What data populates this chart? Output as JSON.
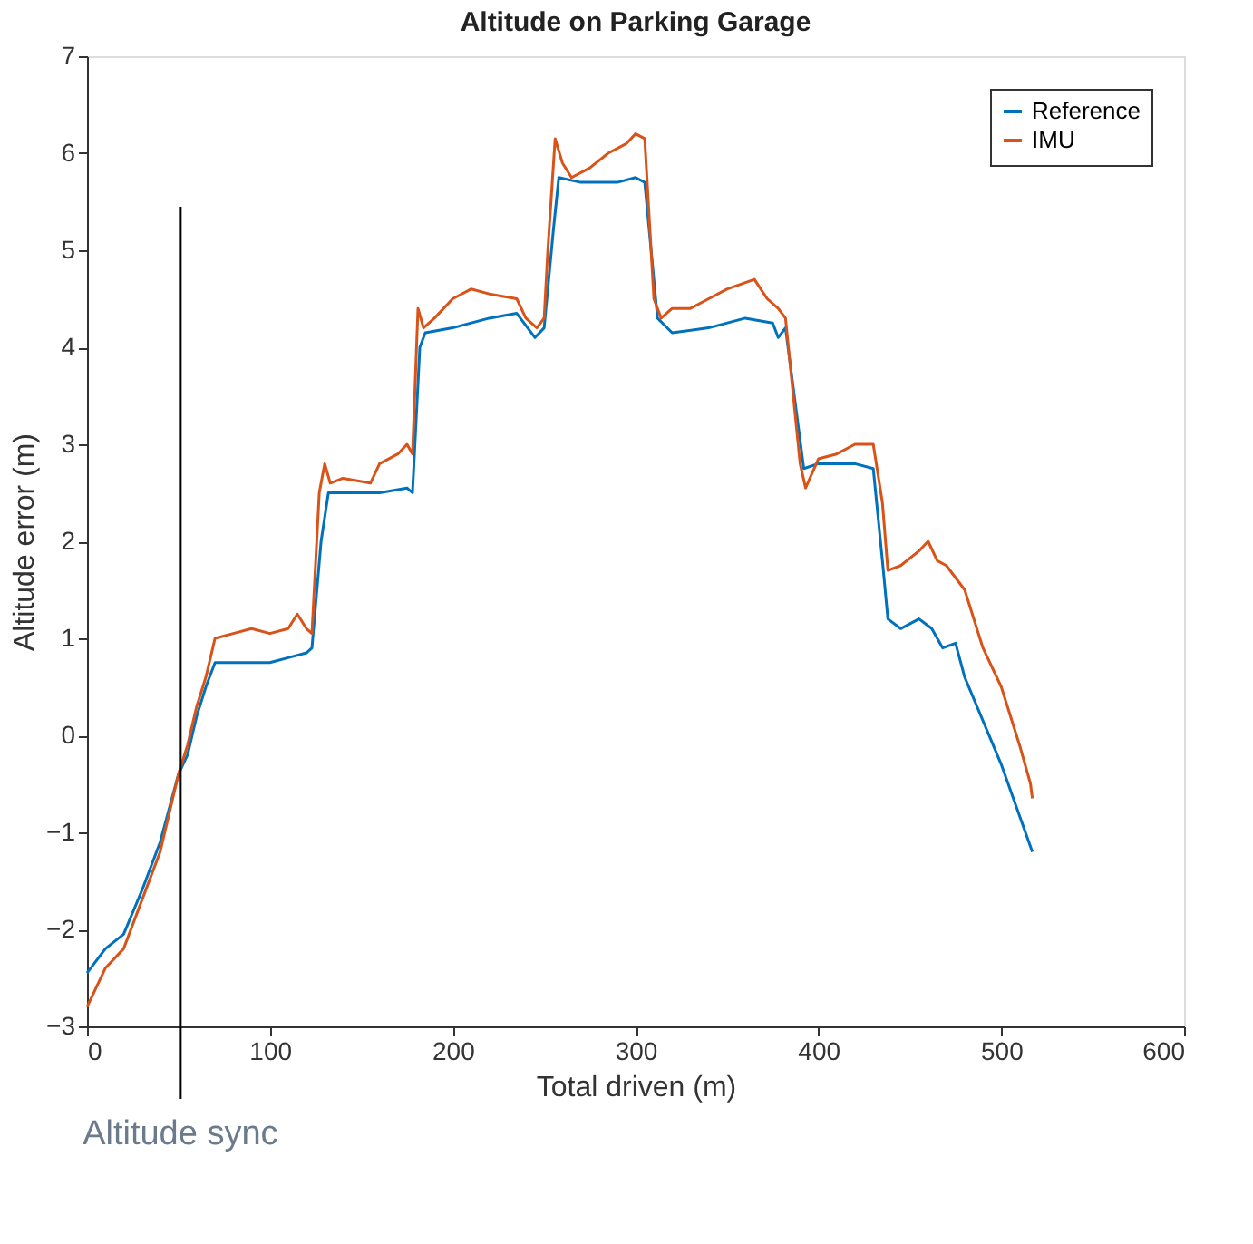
{
  "chart_data": {
    "type": "line",
    "title": "Altitude on Parking Garage",
    "xlabel": "Total driven (m)",
    "ylabel": "Altitude error (m)",
    "xlim": [
      0,
      600
    ],
    "xticks": [
      0,
      100,
      200,
      300,
      400,
      500,
      600
    ],
    "ylim": [
      -3,
      7
    ],
    "yticks": [
      -3,
      -2,
      -1,
      0,
      1,
      2,
      3,
      4,
      5,
      6,
      7
    ],
    "grid": false,
    "legend": "top right",
    "series": [
      {
        "name": "Reference",
        "color": "#0072bd",
        "x": [
          0,
          10,
          20,
          30,
          40,
          50,
          55,
          60,
          65,
          70,
          80,
          90,
          100,
          110,
          120,
          123,
          128,
          132,
          140,
          160,
          175,
          178,
          182,
          185,
          200,
          220,
          235,
          245,
          250,
          255,
          258,
          270,
          290,
          300,
          305,
          312,
          320,
          340,
          360,
          375,
          378,
          382,
          392,
          400,
          420,
          430,
          435,
          438,
          445,
          455,
          462,
          468,
          475,
          480,
          500,
          517
        ],
        "values": [
          -2.45,
          -2.2,
          -2.05,
          -1.6,
          -1.1,
          -0.4,
          -0.2,
          0.2,
          0.5,
          0.75,
          0.75,
          0.75,
          0.75,
          0.8,
          0.85,
          0.9,
          2.0,
          2.5,
          2.5,
          2.5,
          2.55,
          2.5,
          4.0,
          4.15,
          4.2,
          4.3,
          4.35,
          4.1,
          4.2,
          5.2,
          5.75,
          5.7,
          5.7,
          5.75,
          5.7,
          4.3,
          4.15,
          4.2,
          4.3,
          4.25,
          4.1,
          4.2,
          2.75,
          2.8,
          2.8,
          2.75,
          1.8,
          1.2,
          1.1,
          1.2,
          1.1,
          0.9,
          0.95,
          0.6,
          -0.3,
          -1.2
        ]
      },
      {
        "name": "IMU",
        "color": "#d95319",
        "x": [
          0,
          10,
          20,
          30,
          40,
          50,
          55,
          60,
          65,
          70,
          80,
          90,
          100,
          110,
          115,
          120,
          123,
          127,
          130,
          133,
          140,
          155,
          160,
          170,
          175,
          178,
          181,
          184,
          190,
          200,
          210,
          220,
          235,
          240,
          246,
          250,
          252,
          256,
          260,
          265,
          275,
          285,
          295,
          300,
          305,
          310,
          314,
          320,
          330,
          340,
          350,
          365,
          372,
          378,
          382,
          390,
          393,
          400,
          410,
          420,
          430,
          435,
          438,
          445,
          455,
          460,
          465,
          470,
          480,
          490,
          500,
          510,
          516,
          517
        ],
        "values": [
          -2.8,
          -2.4,
          -2.2,
          -1.7,
          -1.2,
          -0.4,
          -0.1,
          0.3,
          0.6,
          1.0,
          1.05,
          1.1,
          1.05,
          1.1,
          1.25,
          1.1,
          1.05,
          2.5,
          2.8,
          2.6,
          2.65,
          2.6,
          2.8,
          2.9,
          3.0,
          2.9,
          4.4,
          4.2,
          4.3,
          4.5,
          4.6,
          4.55,
          4.5,
          4.3,
          4.2,
          4.3,
          5.0,
          6.15,
          5.9,
          5.75,
          5.85,
          6.0,
          6.1,
          6.2,
          6.15,
          4.5,
          4.3,
          4.4,
          4.4,
          4.5,
          4.6,
          4.7,
          4.5,
          4.4,
          4.3,
          2.8,
          2.55,
          2.85,
          2.9,
          3.0,
          3.0,
          2.4,
          1.7,
          1.75,
          1.9,
          2.0,
          1.8,
          1.75,
          1.5,
          0.9,
          0.5,
          -0.1,
          -0.5,
          -0.65
        ]
      }
    ],
    "ref_lines": [
      {
        "axis": "x",
        "value": 51,
        "label": "Altitude sync",
        "color": "#000000"
      }
    ]
  }
}
